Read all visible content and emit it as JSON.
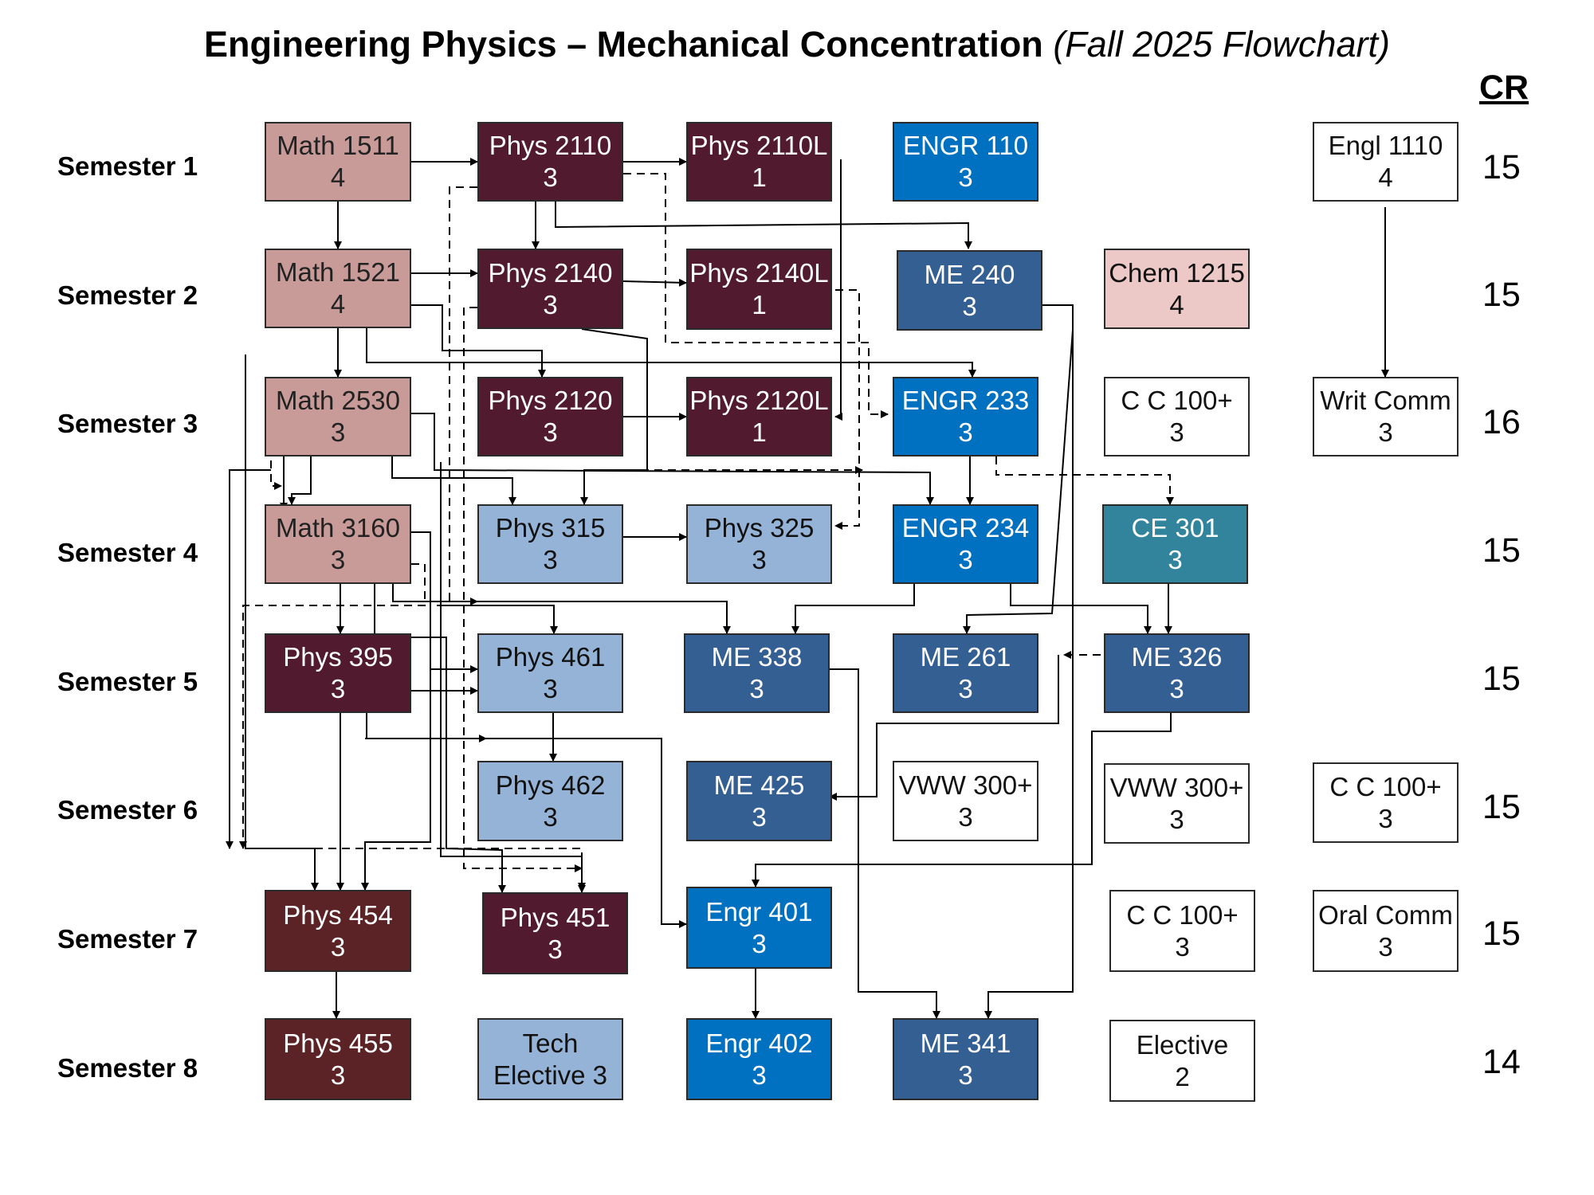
{
  "title": "Engineering Physics – Mechanical Concentration",
  "subtitle": "(Fall 2025 Flowchart)",
  "cr_header": "CR",
  "semesters": [
    {
      "label": "Semester 1",
      "credits": "15"
    },
    {
      "label": "Semester 2",
      "credits": "15"
    },
    {
      "label": "Semester 3",
      "credits": "16"
    },
    {
      "label": "Semester 4",
      "credits": "15"
    },
    {
      "label": "Semester 5",
      "credits": "15"
    },
    {
      "label": "Semester 6",
      "credits": "15"
    },
    {
      "label": "Semester 7",
      "credits": "15"
    },
    {
      "label": "Semester 8",
      "credits": "14"
    }
  ],
  "colors": {
    "math": "#c89b98",
    "physics_dark": "#511a2e",
    "physics_brown": "#5c2327",
    "physics_light": "#95b3d6",
    "engr_blue": "#0070c0",
    "me_blue": "#335f93",
    "ce_teal": "#31849b",
    "chem_pink": "#ecc8c6",
    "gen_ed": "#ffffff"
  },
  "courses": [
    {
      "id": "math1511",
      "name": "Math 1511",
      "credits": "4"
    },
    {
      "id": "phys2110",
      "name": "Phys 2110",
      "credits": "3"
    },
    {
      "id": "phys2110l",
      "name": "Phys 2110L",
      "credits": "1"
    },
    {
      "id": "engr110",
      "name": "ENGR 110",
      "credits": "3"
    },
    {
      "id": "engl1110",
      "name": "Engl 1110",
      "credits": "4"
    },
    {
      "id": "math1521",
      "name": "Math 1521",
      "credits": "4"
    },
    {
      "id": "phys2140",
      "name": "Phys 2140",
      "credits": "3"
    },
    {
      "id": "phys2140l",
      "name": "Phys 2140L",
      "credits": "1"
    },
    {
      "id": "me240",
      "name": "ME 240",
      "credits": "3"
    },
    {
      "id": "chem1215",
      "name": "Chem 1215",
      "credits": "4"
    },
    {
      "id": "math2530",
      "name": "Math 2530",
      "credits": "3"
    },
    {
      "id": "phys2120",
      "name": "Phys 2120",
      "credits": "3"
    },
    {
      "id": "phys2120l",
      "name": "Phys 2120L",
      "credits": "1"
    },
    {
      "id": "engr233",
      "name": "ENGR 233",
      "credits": "3"
    },
    {
      "id": "cc100a",
      "name": "C C 100+",
      "credits": "3"
    },
    {
      "id": "writcomm",
      "name": "Writ Comm",
      "credits": "3"
    },
    {
      "id": "math3160",
      "name": "Math 3160",
      "credits": "3"
    },
    {
      "id": "phys315",
      "name": "Phys 315",
      "credits": "3"
    },
    {
      "id": "phys325",
      "name": "Phys 325",
      "credits": "3"
    },
    {
      "id": "engr234",
      "name": "ENGR 234",
      "credits": "3"
    },
    {
      "id": "ce301",
      "name": "CE 301",
      "credits": "3"
    },
    {
      "id": "phys395",
      "name": "Phys 395",
      "credits": "3"
    },
    {
      "id": "phys461",
      "name": "Phys 461",
      "credits": "3"
    },
    {
      "id": "me338",
      "name": "ME 338",
      "credits": "3"
    },
    {
      "id": "me261",
      "name": "ME 261",
      "credits": "3"
    },
    {
      "id": "me326",
      "name": "ME 326",
      "credits": "3"
    },
    {
      "id": "phys462",
      "name": "Phys 462",
      "credits": "3"
    },
    {
      "id": "me425",
      "name": "ME 425",
      "credits": "3"
    },
    {
      "id": "vww1",
      "name": "VWW 300+",
      "credits": "3"
    },
    {
      "id": "vww2",
      "name": "VWW 300+",
      "credits": "3"
    },
    {
      "id": "cc100b",
      "name": "C C 100+",
      "credits": "3"
    },
    {
      "id": "phys454",
      "name": "Phys 454",
      "credits": "3"
    },
    {
      "id": "phys451",
      "name": "Phys 451",
      "credits": "3"
    },
    {
      "id": "engr401",
      "name": "Engr 401",
      "credits": "3"
    },
    {
      "id": "cc100c",
      "name": "C C 100+",
      "credits": "3"
    },
    {
      "id": "oralcomm",
      "name": "Oral Comm",
      "credits": "3"
    },
    {
      "id": "phys455",
      "name": "Phys 455",
      "credits": "3"
    },
    {
      "id": "techelective",
      "name": "Tech",
      "credits": "Elective 3"
    },
    {
      "id": "engr402",
      "name": "Engr 402",
      "credits": "3"
    },
    {
      "id": "me341",
      "name": "ME 341",
      "credits": "3"
    },
    {
      "id": "elective",
      "name": "Elective",
      "credits": "2"
    }
  ]
}
